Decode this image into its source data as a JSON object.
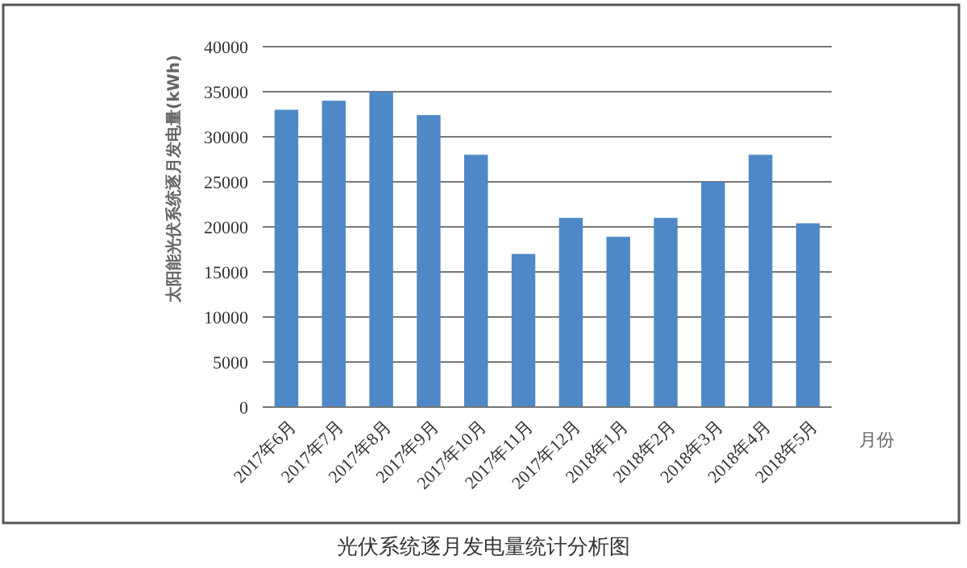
{
  "chart_data": {
    "type": "bar",
    "title": "光伏系统逐月发电量统计分析图",
    "ylabel": "太阳能光伏系统逐月发电量(kWh)",
    "xlabel": "月份",
    "categories": [
      "2017年6月",
      "2017年7月",
      "2017年8月",
      "2017年9月",
      "2017年10月",
      "2017年11月",
      "2017年12月",
      "2018年1月",
      "2018年2月",
      "2018年3月",
      "2018年4月",
      "2018年5月"
    ],
    "values": [
      33000,
      34000,
      35000,
      32400,
      28000,
      17000,
      21000,
      18900,
      21000,
      25000,
      28000,
      20400
    ],
    "color": "#4f88c6",
    "ylim": [
      0,
      40000
    ],
    "yticks": [
      0,
      5000,
      10000,
      15000,
      20000,
      25000,
      30000,
      35000,
      40000
    ],
    "grid": "y"
  }
}
